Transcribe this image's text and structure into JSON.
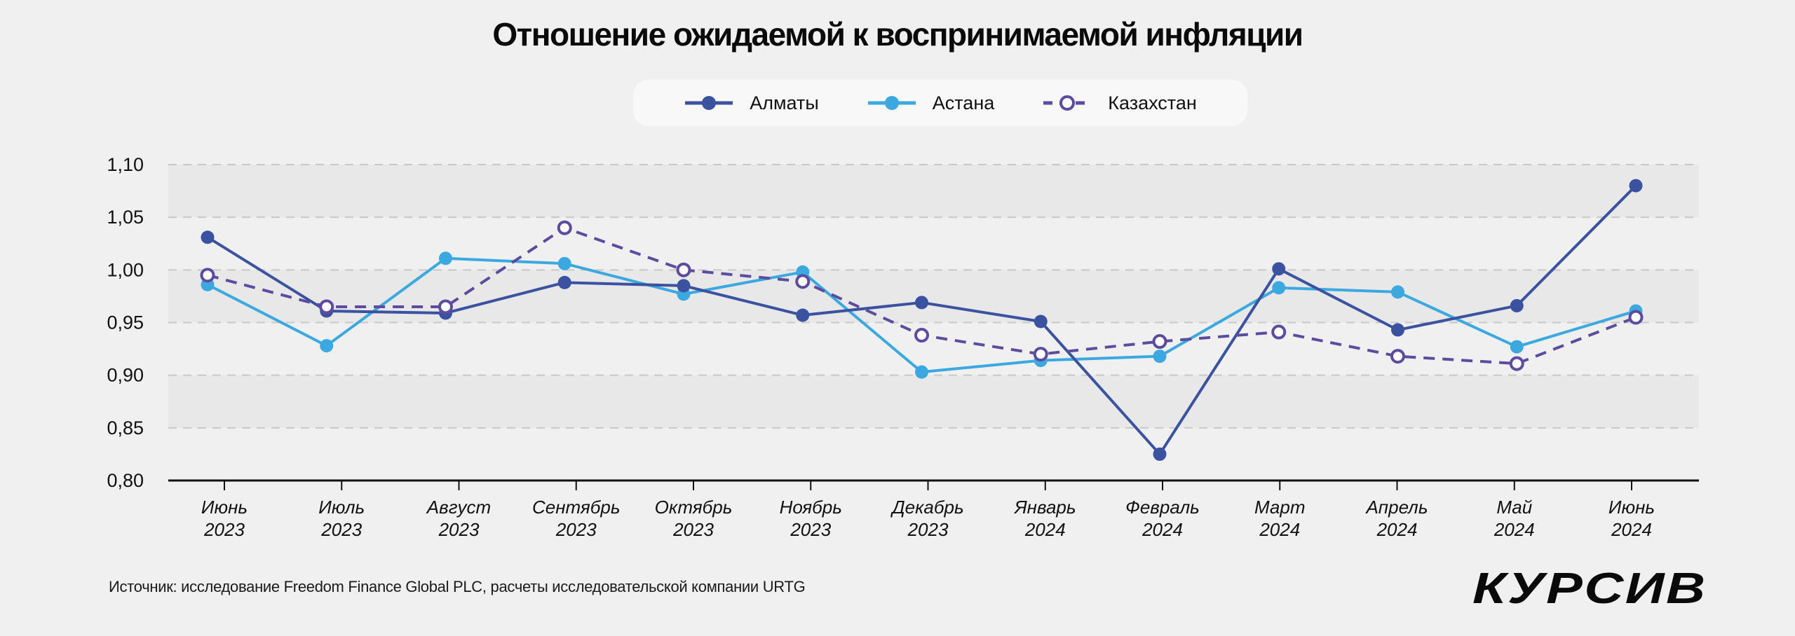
{
  "header": {
    "title": "Отношение ожидаемой к воспринимаемой инфляции"
  },
  "legend": [
    {
      "name": "Алматы",
      "color": "#3b52a0",
      "style": "solid",
      "marker": "filled"
    },
    {
      "name": "Астана",
      "color": "#3ba9e0",
      "style": "solid",
      "marker": "filled"
    },
    {
      "name": "Казахстан",
      "color": "#5c4b9e",
      "style": "dashed",
      "marker": "hollow"
    }
  ],
  "footer": {
    "source": "Источник: исследование Freedom Finance Global PLC, расчеты исследовательской компании URTG",
    "logo": "КУРСИВ"
  },
  "chart_data": {
    "type": "line",
    "title": "Отношение ожидаемой к воспринимаемой инфляции",
    "xlabel": "",
    "ylabel": "",
    "ylim": [
      0.8,
      1.1
    ],
    "y_ticks": [
      "0,80",
      "0,85",
      "0,90",
      "0,95",
      "1,00",
      "1,05",
      "1,10"
    ],
    "y_tick_values": [
      0.8,
      0.85,
      0.9,
      0.95,
      1.0,
      1.05,
      1.1
    ],
    "grid": true,
    "legend_position": "top-center",
    "categories": [
      [
        "Июнь",
        "2023"
      ],
      [
        "Июль",
        "2023"
      ],
      [
        "Август",
        "2023"
      ],
      [
        "Сентябрь",
        "2023"
      ],
      [
        "Октябрь",
        "2023"
      ],
      [
        "Ноябрь",
        "2023"
      ],
      [
        "Декабрь",
        "2023"
      ],
      [
        "Январь",
        "2024"
      ],
      [
        "Февраль",
        "2024"
      ],
      [
        "Март",
        "2024"
      ],
      [
        "Апрель",
        "2024"
      ],
      [
        "Май",
        "2024"
      ],
      [
        "Июнь",
        "2024"
      ]
    ],
    "series": [
      {
        "name": "Алматы",
        "values": [
          1.031,
          0.961,
          0.959,
          0.988,
          0.985,
          0.957,
          0.969,
          0.951,
          0.825,
          1.001,
          0.943,
          0.966,
          1.08
        ]
      },
      {
        "name": "Астана",
        "values": [
          0.986,
          0.928,
          1.011,
          1.006,
          0.977,
          0.998,
          0.903,
          0.914,
          0.918,
          0.983,
          0.979,
          0.927,
          0.961
        ]
      },
      {
        "name": "Казахстан",
        "values": [
          0.995,
          0.965,
          0.965,
          1.04,
          1.0,
          0.989,
          0.938,
          0.92,
          0.932,
          0.941,
          0.918,
          0.911,
          0.955
        ]
      }
    ]
  }
}
